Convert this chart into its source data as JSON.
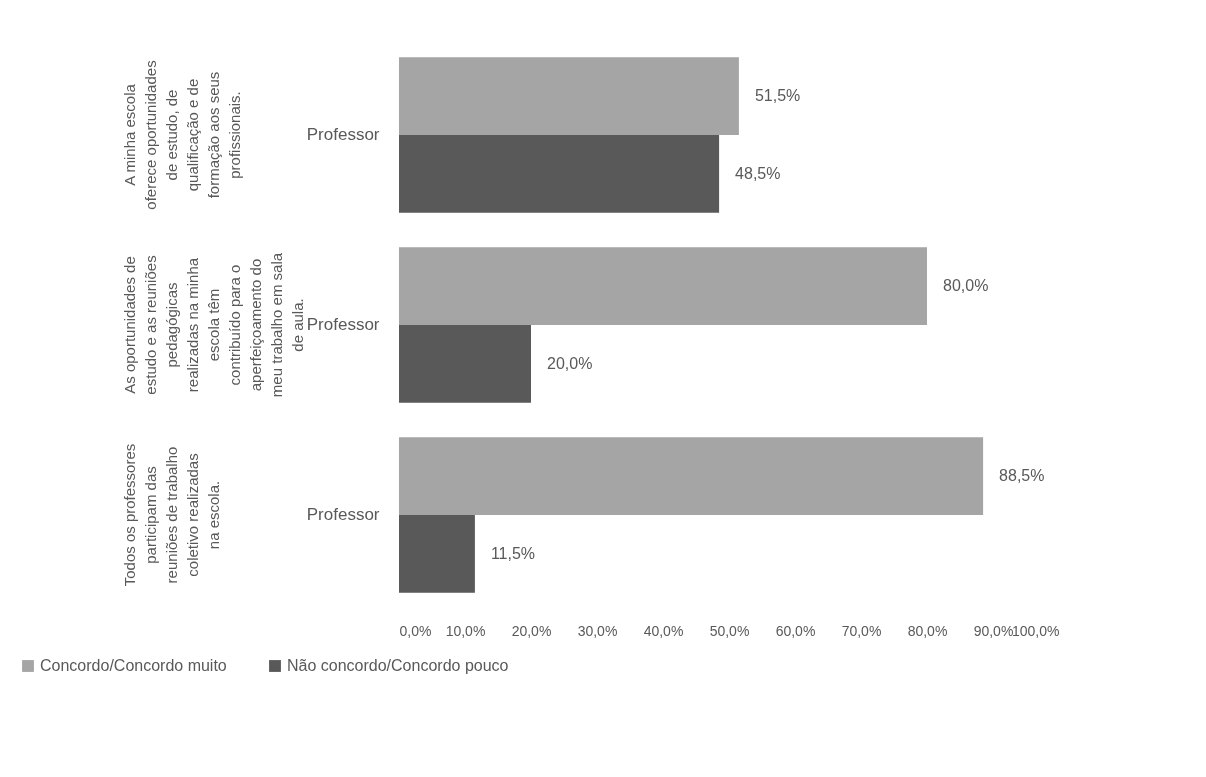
{
  "chart_data": {
    "type": "bar",
    "orientation": "horizontal",
    "categories": [
      "Professor",
      "Professor",
      "Professor"
    ],
    "series": [
      {
        "name": "Concordo/Concordo muito",
        "color": "#a5a5a5",
        "values": [
          51.5,
          80.0,
          88.5
        ],
        "value_labels": [
          "51,5%",
          "80,0%",
          "88,5%"
        ]
      },
      {
        "name": "Não concordo/Concordo pouco",
        "color": "#595959",
        "values": [
          48.5,
          20.0,
          11.5
        ],
        "value_labels": [
          "48,5%",
          "20,0%",
          "11,5%"
        ]
      }
    ],
    "xlim": [
      0,
      100
    ],
    "xticks": [
      {
        "value": 0,
        "label": "0,0%"
      },
      {
        "value": 10,
        "label": "10,0%"
      },
      {
        "value": 20,
        "label": "20,0%"
      },
      {
        "value": 30,
        "label": "30,0%"
      },
      {
        "value": 40,
        "label": "40,0%"
      },
      {
        "value": 50,
        "label": "50,0%"
      },
      {
        "value": 60,
        "label": "60,0%"
      },
      {
        "value": 70,
        "label": "70,0%"
      },
      {
        "value": 80,
        "label": "80,0%"
      },
      {
        "value": 90,
        "label": "90,0%"
      },
      {
        "value": 100,
        "label": "100,0%"
      }
    ],
    "annotations": [
      "A minha escola oferece oportunidades de estudo, de qualificação e de formação aos seus profissionais.",
      "As oportunidades de estudo e as reuniões pedagógicas realizadas na minha escola têm contribuído para o aperfeiçoamento do meu trabalho em sala de aula.",
      "Todos os professores participam das reuniões de trabalho coletivo realizadas na escola."
    ],
    "grid": false,
    "legend": "bottom"
  }
}
